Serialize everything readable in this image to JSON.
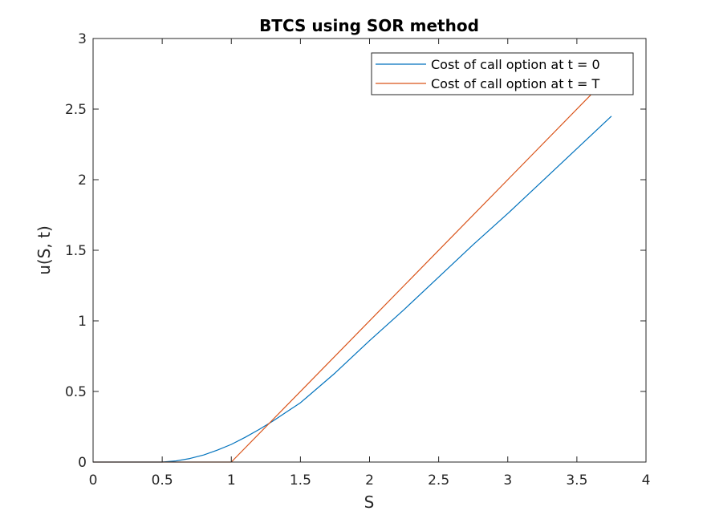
{
  "chart_data": {
    "type": "line",
    "title": "BTCS using SOR method",
    "xlabel": "S",
    "ylabel": "u(S, t)",
    "xlim": [
      0,
      4
    ],
    "ylim": [
      0,
      3
    ],
    "x_ticks": [
      "0",
      "0.5",
      "1",
      "1.5",
      "2",
      "2.5",
      "3",
      "3.5",
      "4"
    ],
    "y_ticks": [
      "0",
      "0.5",
      "1",
      "1.5",
      "2",
      "2.5",
      "3"
    ],
    "grid": false,
    "legend_location": "top-right",
    "series": [
      {
        "name": "Cost of call option at t = 0",
        "color": "#0072BD",
        "x": [
          0,
          0.5,
          0.6,
          0.7,
          0.8,
          0.9,
          1.0,
          1.1,
          1.2,
          1.3,
          1.4,
          1.5,
          1.75,
          2.0,
          2.25,
          2.5,
          2.75,
          3.0,
          3.25,
          3.5,
          3.75
        ],
        "y": [
          0,
          0,
          0.008,
          0.025,
          0.05,
          0.085,
          0.125,
          0.175,
          0.23,
          0.29,
          0.355,
          0.42,
          0.63,
          0.86,
          1.08,
          1.31,
          1.54,
          1.76,
          1.99,
          2.22,
          2.45
        ]
      },
      {
        "name": "Cost of call option at t = T",
        "color": "#D95319",
        "x": [
          0,
          1.0,
          3.6
        ],
        "y": [
          0,
          0,
          2.6
        ]
      }
    ]
  }
}
